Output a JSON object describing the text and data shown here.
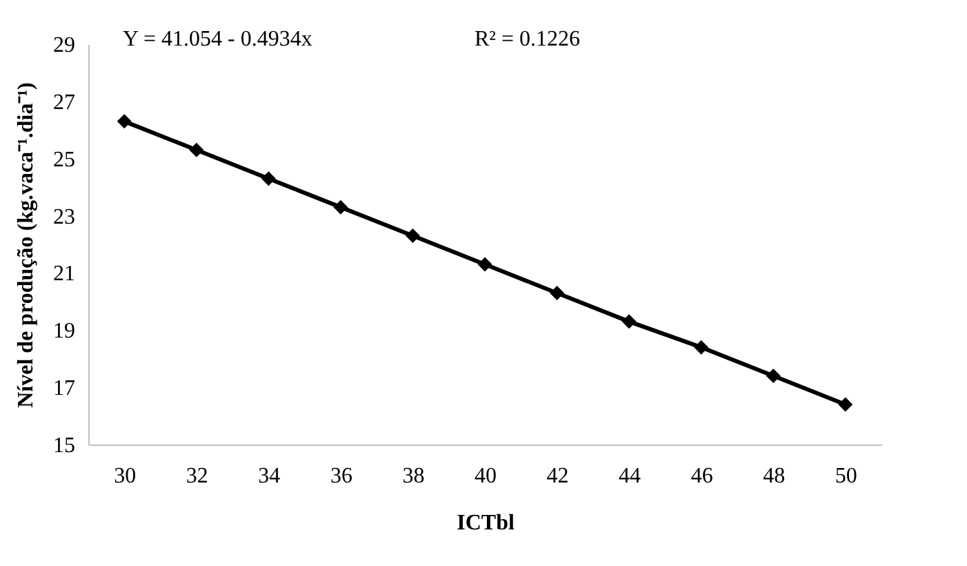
{
  "chart_data": {
    "type": "line",
    "categories": [
      "30",
      "32",
      "34",
      "36",
      "38",
      "40",
      "42",
      "44",
      "46",
      "48",
      "50"
    ],
    "series": [
      {
        "color": "#000000",
        "values": [
          26.3,
          25.3,
          24.3,
          23.3,
          22.3,
          21.3,
          20.3,
          19.3,
          18.4,
          17.4,
          16.4
        ]
      }
    ],
    "xlabel": "ICTbl",
    "ylabel": "Nível de produção (kg.vaca⁻¹.dia⁻¹)",
    "ylim": [
      15,
      29
    ],
    "yticks": [
      15,
      17,
      19,
      21,
      23,
      25,
      27,
      29
    ],
    "annotations": [
      "Y = 41.054 - 0.4934x",
      "R² = 0.1226"
    ],
    "marker": "diamond",
    "line_style": "solid",
    "grid": false
  }
}
